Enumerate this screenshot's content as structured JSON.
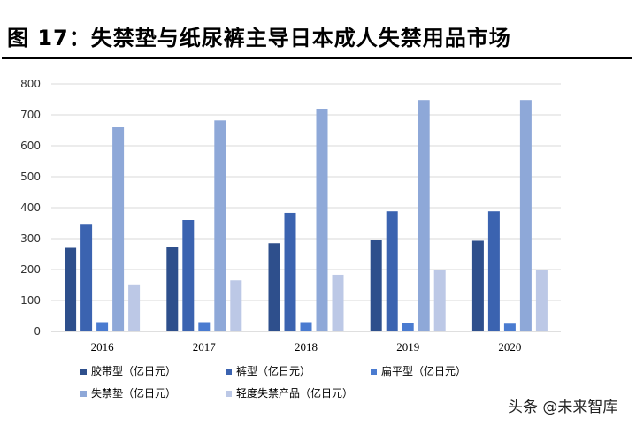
{
  "figure": {
    "title": "图 17：失禁垫与纸尿裤主导日本成人失禁用品市场",
    "watermark": "头条 @未来智库"
  },
  "colors": {
    "series": [
      "#2E4F8C",
      "#3B63B0",
      "#4A7BD0",
      "#8EA8D8",
      "#BCC8E6"
    ],
    "grid": "#D9D9D9",
    "axis": "#BFBFBF"
  },
  "chart_data": {
    "type": "bar",
    "title": "",
    "xlabel": "",
    "ylabel": "",
    "categories": [
      "2016",
      "2017",
      "2018",
      "2019",
      "2020"
    ],
    "ylim": [
      0,
      800
    ],
    "yticks": [
      0,
      100,
      200,
      300,
      400,
      500,
      600,
      700,
      800
    ],
    "grid": true,
    "legend_position": "bottom",
    "series": [
      {
        "name": "胶带型（亿日元）",
        "values": [
          270,
          273,
          285,
          295,
          293
        ]
      },
      {
        "name": "裤型（亿日元）",
        "values": [
          345,
          360,
          383,
          388,
          388
        ]
      },
      {
        "name": "扁平型（亿日元）",
        "values": [
          30,
          30,
          30,
          28,
          25
        ]
      },
      {
        "name": "失禁垫（亿日元）",
        "values": [
          660,
          682,
          720,
          748,
          748
        ]
      },
      {
        "name": "轻度失禁产品（亿日元）",
        "values": [
          152,
          165,
          183,
          198,
          200
        ]
      }
    ]
  }
}
